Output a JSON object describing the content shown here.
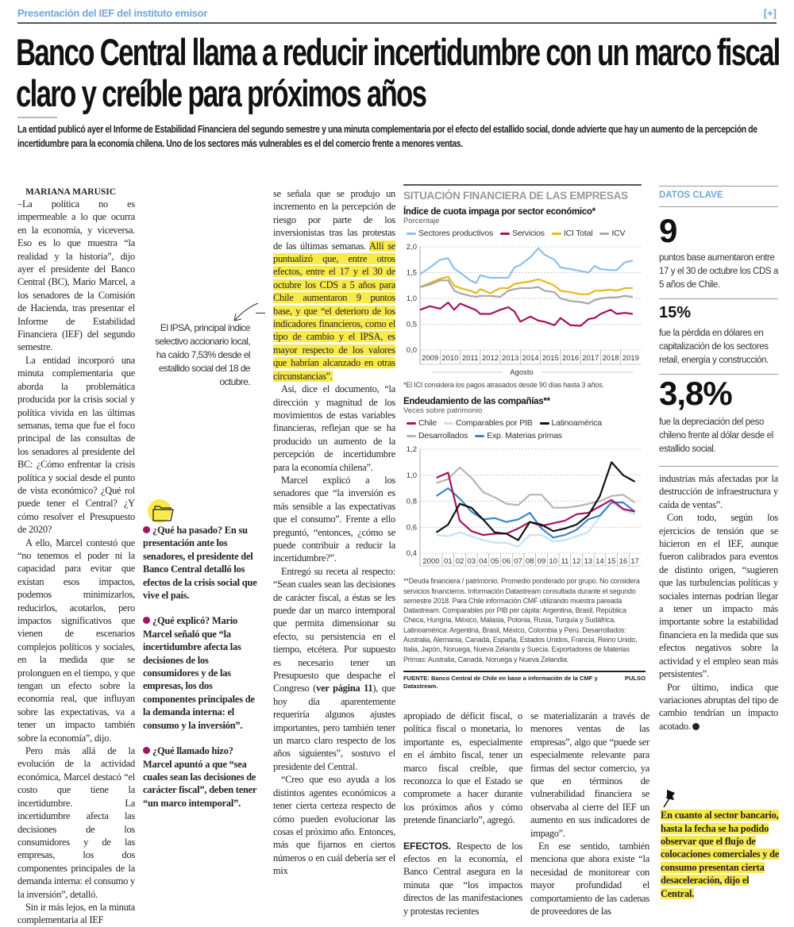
{
  "section": {
    "kicker": "Presentación del IEF del instituto emisor",
    "plus": "[+]"
  },
  "headline": "Banco Central llama a reducir incertidumbre con un marco fiscal claro y creíble para próximos años",
  "deck": "La entidad publicó ayer el Informe de Estabilidad Financiera del segundo semestre y una minuta complementaria por el efecto del estallido social, donde advierte que hay un aumento de la percepción de incertidumbre para la economía chilena. Uno de los sectores más vulnerables es el del comercio frente a menores ventas.",
  "byline": "MARIANA MARUSIC",
  "col1": [
    "–La política no es impermeable a lo que ocurra en la economía, y viceversa. Eso es lo que muestra “la realidad y la historia”, dijo ayer el presidente del Banco Central (BC), Mario Marcel, a los senadores de la Comisión de Hacienda, tras presentar el Informe de Estabilidad Financiera (IEF) del segundo semestre.",
    "La entidad incorporó una minuta complementaria que aborda la problemática producida por la crisis social y política vivida en las últimas semanas, tema que fue el foco principal de las consultas de los senadores al presidente del BC: ¿Cómo enfrentar la crisis política y social desde el punto de vista económico? ¿Qué rol puede tener el Central? ¿Y cómo resolver el Presupuesto de 2020?",
    "A ello, Marcel contestó que “no tenemos el poder ni la capacidad para evitar que existan esos impactos, podemos minimizarlos, reducirlos, acotarlos, pero impactos significativos que vienen de escenarios complejos políticos y sociales, en la medida que se prolonguen en el tiempo, y que tengan un efecto sobre la economía real, que influyan sobre las expectativas, va a tener un impacto también sobre la economía”, dijo.",
    "Pero más allá de la evolución de la actividad económica, Marcel destacó “el costo que tiene la incertidumbre. La incertidumbre afecta las decisiones de los consumidores y de las empresas, los dos componentes principales de la demanda interna: el consumo y la inversión”, detalló.",
    "Sin ir más lejos, en la minuta complementaria al IEF"
  ],
  "pull_quote": "El IPSA, principal índice selectivo accionario local, ha caído 7,53% desde el estallido social del 18 de octubre.",
  "qa": [
    {
      "q": "¿Qué ha pasado?",
      "a": " En su presentación ante los senadores, el presidente del Banco Central detalló los efectos de la crisis social que vive el país."
    },
    {
      "q": "¿Qué explicó?",
      "a": " Mario Marcel señaló que “la incertidumbre afecta las decisiones de los consumidores y de las empresas, los dos componentes principales de la demanda interna: el consumo y la inversión”."
    },
    {
      "q": "¿Qué llamado hizo?",
      "a": " Marcel apuntó a que “sea cuales sean las decisiones de carácter fiscal”, deben tener “un marco intemporal”."
    }
  ],
  "col3": {
    "p1_plain": "se señala que se produjo un incremento en la percepción de riesgo por parte de los inversionistas tras las protestas de las últimas semanas. ",
    "p1_highlight": "Allí se puntualizó que, entre otros efectos, entre el 17 y el 30 de octubre los CDS a 5 años para Chile aumentaron 9 puntos base, y que “el deterioro de los indicadores financieros, como el tipo de cambio y el IPSA, es mayor respecto de los valores que habrían alcanzado en otras circunstancias”.",
    "p2": "Así, dice el documento, “la dirección y magnitud de los movimientos de estas variables financieras, reflejan que se ha producido un aumento de la percepción de incertidumbre para la economía chilena”.",
    "p3": "Marcel explicó a los senadores que “la inversión es más sensible a las expectativas que el consumo”. Frente a ello preguntó, “entonces, ¿cómo se puede contribuir a reducir la incertidumbre?”.",
    "p4_a": "Entregó su receta al respecto: “Sean cuales sean las decisiones de carácter fiscal, a éstas se les puede dar un marco intemporal que permita dimensionar su efecto, su persistencia en el tiempo, etcétera. Por supuesto es necesario tener un Presupuesto que despache el Congreso (",
    "p4_link": "ver página 11",
    "p4_b": "), que hoy día aparentemente requeriría algunos ajustes importantes, pero también tener un marco claro respecto de los años siguientes”, sostuvo el presidente del Central.",
    "p5": "“Creo que eso ayuda a los distintos agentes económicos a tener cierta certeza respecto de cómo pueden evolucionar las cosas el próximo año. Entonces, más que fijarnos en ciertos números o en cuál debería ser el mix"
  },
  "infographic": {
    "title": "SITUACIÓN FINANCIERA DE LAS EMPRESAS",
    "footnote1": "*El ICI considera los pagos atrasados desde 90 días hasta 3 años.",
    "footnote2": "**Deuda financiera / patrimonio. Promedio ponderado por grupo. No considera servicios financieros. Información Datastream consultada durante el segundo semestre 2018. Para Chile información CMF utilizando muestra pareada Datastream. Comparables por PIB per cápita: Argentina, Brasil, República Checa, Hungría, México, Malasia, Polonia, Rusia, Turquía y Sudáfrica. Latinoamérica: Argentina, Brasil, México, Colombia y Perú. Desarrollados: Australia, Alemania, Canadá, España, Estados Unidos, Francia, Reino Unido, Italia, Japón, Noruega, Nueva Zelanda y Suecia. Exportadores de Materias Primas: Australia, Canadá, Noruega y Nueva Zelandia.",
    "source": "FUENTE: Banco Central de Chile en base a información de la CMF y Datastream.",
    "brand": "PULSO"
  },
  "chart_data": [
    {
      "type": "line",
      "title": "Índice de cuota impaga por sector económico*",
      "ylabel": "Porcentaje",
      "xlabel": "Agosto",
      "ylim": [
        0,
        2
      ],
      "yticks": [
        "0,0",
        "0,5",
        "1,0",
        "1,5",
        "2,0"
      ],
      "ytick_values": [
        0,
        0.5,
        1,
        1.5,
        2
      ],
      "xticks": [
        "2009",
        "2010",
        "2011",
        "2012",
        "2013",
        "2014",
        "2015",
        "2016",
        "2017",
        "2018",
        "2019"
      ],
      "grid": true,
      "legend": "top",
      "x": [
        2009.0,
        2009.5,
        2010.0,
        2010.4,
        2010.7,
        2011.0,
        2011.5,
        2011.8,
        2012.0,
        2012.5,
        2013.0,
        2013.4,
        2013.7,
        2014.0,
        2014.5,
        2014.9,
        2015.2,
        2015.7,
        2016.0,
        2016.5,
        2017.0,
        2017.4,
        2017.7,
        2018.0,
        2018.5,
        2018.8,
        2019.2,
        2019.6
      ],
      "series": [
        {
          "name": "Sectores productivos",
          "color": "#8fbfe6",
          "values": [
            1.47,
            1.6,
            1.75,
            1.78,
            1.58,
            1.5,
            1.35,
            1.3,
            1.45,
            1.4,
            1.4,
            1.4,
            1.6,
            1.65,
            1.8,
            1.97,
            1.85,
            1.75,
            1.6,
            1.57,
            1.53,
            1.5,
            1.63,
            1.57,
            1.55,
            1.55,
            1.7,
            1.73
          ]
        },
        {
          "name": "Servicios",
          "color": "#a3145f",
          "values": [
            0.78,
            0.85,
            0.8,
            0.92,
            0.78,
            0.9,
            0.82,
            0.77,
            0.7,
            0.7,
            0.78,
            0.83,
            0.75,
            0.55,
            0.65,
            0.57,
            0.55,
            0.48,
            0.62,
            0.48,
            0.47,
            0.6,
            0.62,
            0.7,
            0.78,
            0.7,
            0.72,
            0.7
          ]
        },
        {
          "name": "ICI Total",
          "color": "#e8b81c",
          "values": [
            1.22,
            1.3,
            1.38,
            1.42,
            1.25,
            1.2,
            1.15,
            1.1,
            1.18,
            1.1,
            1.2,
            1.2,
            1.28,
            1.3,
            1.33,
            1.37,
            1.33,
            1.25,
            1.15,
            1.12,
            1.08,
            1.08,
            1.15,
            1.15,
            1.17,
            1.15,
            1.2,
            1.2
          ]
        },
        {
          "name": "ICV",
          "color": "#a8a8a8",
          "values": [
            1.22,
            1.27,
            1.35,
            1.35,
            1.15,
            1.1,
            1.05,
            1.03,
            1.05,
            1.05,
            1.03,
            1.15,
            1.18,
            1.2,
            1.2,
            1.22,
            1.15,
            1.12,
            1.0,
            0.95,
            0.93,
            0.9,
            0.97,
            1.0,
            1.02,
            1.02,
            1.05,
            1.03
          ]
        }
      ]
    },
    {
      "type": "line",
      "title": "Endeudamiento de las compañías**",
      "ylabel": "Veces sobre patrimonio",
      "ylim": [
        0.4,
        1.2
      ],
      "yticks": [
        "0,4",
        "0,6",
        "0,8",
        "1,0",
        "1,2"
      ],
      "ytick_values": [
        0.4,
        0.6,
        0.8,
        1.0,
        1.2
      ],
      "categories": [
        "2000",
        "01",
        "02",
        "03",
        "04",
        "05",
        "06",
        "07",
        "08",
        "09",
        "10",
        "11",
        "12",
        "13",
        "14",
        "15",
        "16",
        "17"
      ],
      "grid": true,
      "legend": "top",
      "series": [
        {
          "name": "Chile",
          "color": "#a3145f",
          "values": [
            0.98,
            1.02,
            0.65,
            0.57,
            0.54,
            0.55,
            0.55,
            0.59,
            0.64,
            0.61,
            0.63,
            0.65,
            0.7,
            0.71,
            0.76,
            0.81,
            0.74,
            0.72
          ]
        },
        {
          "name": "Comparables por PIB",
          "color": "#c6e2f5",
          "values": [
            0.54,
            0.53,
            0.56,
            0.53,
            0.5,
            0.48,
            0.48,
            0.45,
            0.54,
            0.54,
            0.49,
            0.5,
            0.53,
            0.56,
            0.68,
            0.79,
            0.73,
            0.7
          ]
        },
        {
          "name": "Latinoamérica",
          "color": "#111111",
          "values": [
            0.56,
            0.62,
            0.78,
            0.75,
            0.66,
            0.56,
            0.55,
            0.5,
            0.64,
            0.62,
            0.57,
            0.59,
            0.62,
            0.69,
            0.84,
            1.1,
            1.0,
            0.95
          ]
        },
        {
          "name": "Desarrollados",
          "color": "#b5b5b5",
          "values": [
            0.94,
            0.97,
            1.06,
            0.98,
            0.87,
            0.83,
            0.78,
            0.77,
            0.85,
            0.85,
            0.75,
            0.75,
            0.76,
            0.78,
            0.8,
            0.84,
            0.85,
            0.79
          ]
        },
        {
          "name": "Exp. Materias primas",
          "color": "#3d85c6",
          "values": [
            0.84,
            0.9,
            0.82,
            0.72,
            0.66,
            0.67,
            0.64,
            0.66,
            0.71,
            0.59,
            0.52,
            0.54,
            0.58,
            0.66,
            0.69,
            0.79,
            0.79,
            0.72
          ]
        }
      ]
    }
  ],
  "bottomA": {
    "p1": "apropiado de déficit fiscal, o política fiscal o monetaria, lo importante es, especialmente en el ámbito fiscal, tener un marco fiscal creíble, que reconozca lo que el Estado se compromete a hacer durante los próximos años y cómo pretende financiarlo”, agregó.",
    "lead": "EFECTOS.",
    "p2": " Respecto de los efectos en la economía, el Banco Central asegura en la minuta que “los impactos directos de las manifestaciones y protestas recientes"
  },
  "bottomB": {
    "p1": "se materializarán a través de menores ventas de las empresas”, algo que “puede ser especialmente relevante para firmas del sector comercio, ya que en términos de vulnerabilidad financiera se observaba al cierre del IEF un aumento en sus indicadores de impago”.",
    "p2": "En ese sentido, también menciona que ahora existe “la necesidad de monitorear con mayor profundidad el comportamiento de las cadenas de proveedores de las"
  },
  "datos_clave": {
    "title": "DATOS CLAVE",
    "items": [
      {
        "value": "9",
        "text": "puntos base aumentaron entre 17 y el 30 de octubre los CDS a 5 años de Chile."
      },
      {
        "value": "15%",
        "text": "fue la pérdida en dólares en capitalización de los sectores retail, energía y construcción."
      },
      {
        "value": "3,8%",
        "text": "fue la depreciación del peso chileno frente al dólar desde el estallido social."
      }
    ]
  },
  "right_col": {
    "p1": "industrias más afectadas por la destrucción de infraestructura y caída de ventas”.",
    "p2": "Con todo, según los ejercicios de tensión que se hicieron en el IEF, aunque fueron calibrados para eventos de distinto origen, “sugieren que las turbulencias políticas y sociales internas podrían llegar a tener un impacto más importante sobre la estabilidad financiera en la medida que sus efectos negativos sobre la actividad y el empleo sean más persistentes”.",
    "p3": "Por último, indica que variaciones abruptas del tipo de cambio tendrían un impacto acotado."
  },
  "pin_note": "En cuanto al sector bancario, hasta la fecha se ha podido observar que el flujo de colocaciones comerciales y de consumo presentan cierta desaceleración, dijo el Central.",
  "colors": {
    "accent": "#6fa8dc",
    "highlight": "#f9e94a",
    "bullet": "#a3145f"
  }
}
